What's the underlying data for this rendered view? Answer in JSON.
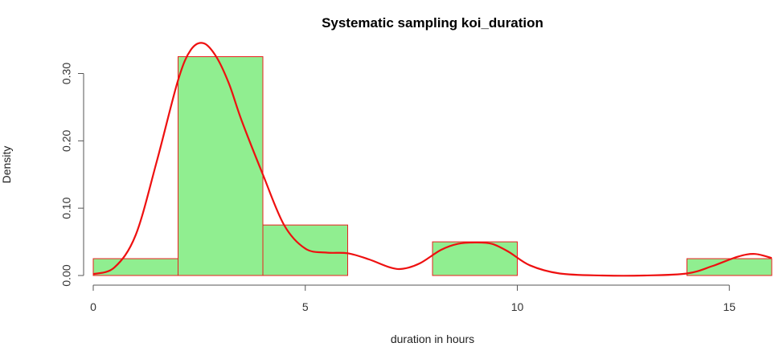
{
  "chart_data": {
    "type": "bar",
    "title": "Systematic sampling koi_duration",
    "xlabel": "duration in hours",
    "ylabel": "Density",
    "xlim": [
      0,
      16
    ],
    "ylim": [
      0,
      0.34
    ],
    "x_ticks": [
      0,
      5,
      10,
      15
    ],
    "x_tick_labels": [
      "0",
      "5",
      "10",
      "15"
    ],
    "y_ticks": [
      0.0,
      0.1,
      0.2,
      0.3
    ],
    "y_tick_labels": [
      "0.00",
      "0.10",
      "0.20",
      "0.30"
    ],
    "grid": false,
    "bins": [
      {
        "start": 0,
        "end": 2,
        "density": 0.025
      },
      {
        "start": 2,
        "end": 4,
        "density": 0.325
      },
      {
        "start": 4,
        "end": 6,
        "density": 0.075
      },
      {
        "start": 6,
        "end": 8,
        "density": 0.0
      },
      {
        "start": 8,
        "end": 10,
        "density": 0.05
      },
      {
        "start": 10,
        "end": 12,
        "density": 0.0
      },
      {
        "start": 12,
        "end": 14,
        "density": 0.0
      },
      {
        "start": 14,
        "end": 16,
        "density": 0.025
      }
    ],
    "density_curve": {
      "x": [
        0,
        0.5,
        1.0,
        1.5,
        2.0,
        2.3,
        2.6,
        2.9,
        3.2,
        3.5,
        4.0,
        4.5,
        5.0,
        5.5,
        6.0,
        6.5,
        7.0,
        7.3,
        7.7,
        8.2,
        8.6,
        9.0,
        9.4,
        9.8,
        10.3,
        11.0,
        12.0,
        13.0,
        14.0,
        14.6,
        15.2,
        15.6,
        16.0
      ],
      "y": [
        0.002,
        0.012,
        0.06,
        0.17,
        0.29,
        0.335,
        0.345,
        0.325,
        0.285,
        0.23,
        0.15,
        0.075,
        0.04,
        0.034,
        0.033,
        0.024,
        0.012,
        0.01,
        0.018,
        0.038,
        0.047,
        0.049,
        0.047,
        0.035,
        0.015,
        0.003,
        0.0,
        0.0,
        0.003,
        0.014,
        0.028,
        0.032,
        0.026
      ]
    },
    "colors": {
      "bar_fill": "#90EE90",
      "bar_stroke": "#E8201E",
      "curve": "#EE1010",
      "axis": "#555555"
    }
  }
}
